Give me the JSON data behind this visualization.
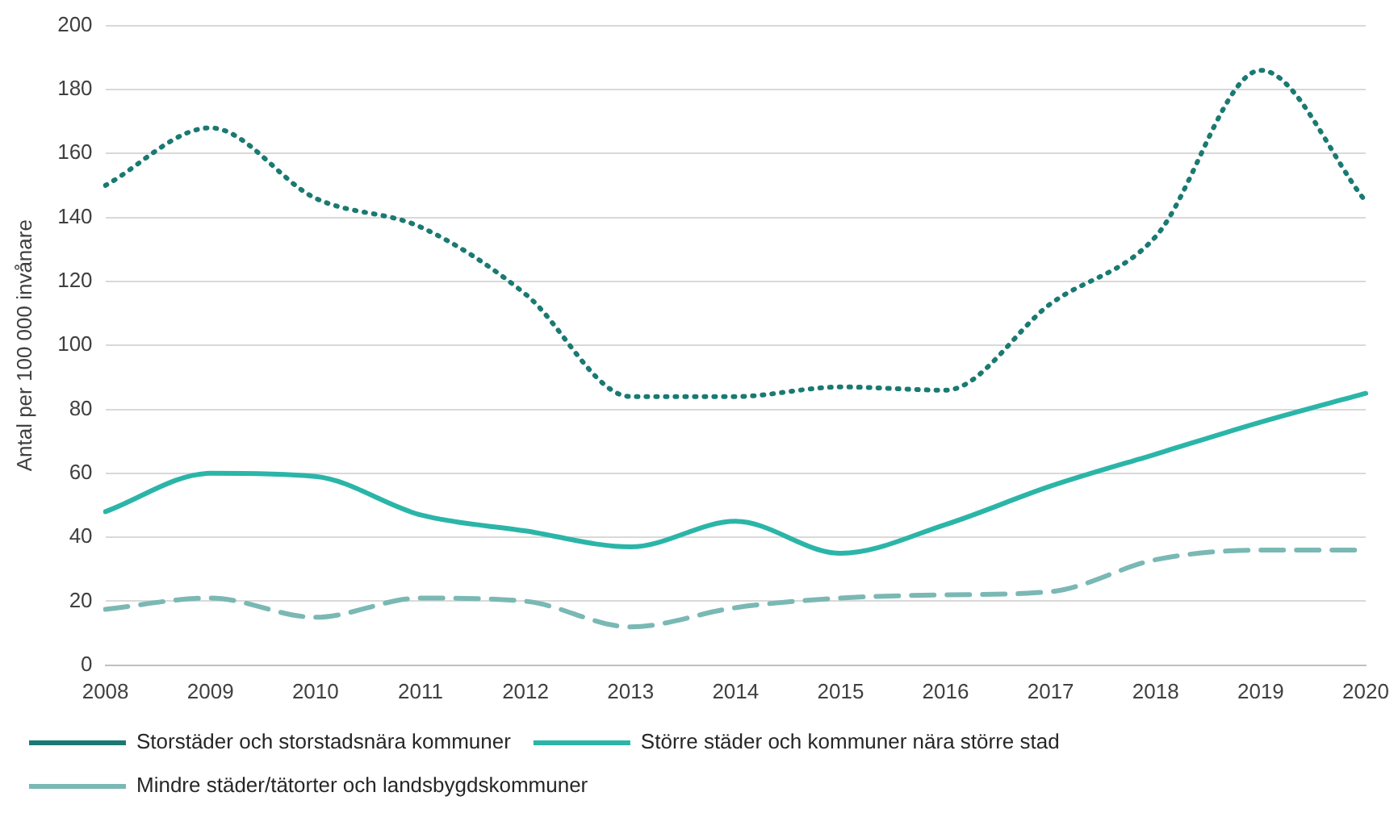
{
  "chart_data": {
    "type": "line",
    "ylabel": "Antal per 100 000 invånare",
    "categories": [
      "2008",
      "2009",
      "2010",
      "2011",
      "2012",
      "2013",
      "2014",
      "2015",
      "2016",
      "2017",
      "2018",
      "2019",
      "2020"
    ],
    "ylim": [
      0,
      200
    ],
    "yticks": [
      0,
      20,
      40,
      60,
      80,
      100,
      120,
      140,
      160,
      180,
      200
    ],
    "grid": "y",
    "legend": "bottom",
    "marker": "none",
    "series": [
      {
        "name": "Storstäder och storstadsnära kommuner",
        "color": "#1a7a72",
        "line_style": "dotted",
        "values": [
          150,
          168,
          146,
          137,
          116,
          84,
          84,
          87,
          86,
          113,
          134,
          186,
          145
        ]
      },
      {
        "name": "Större städer och kommuner nära större stad",
        "color": "#2bb5a8",
        "line_style": "solid",
        "values": [
          48,
          60,
          59,
          47,
          42,
          37,
          45,
          35,
          44,
          56,
          66,
          76,
          85
        ]
      },
      {
        "name": "Mindre städer/tätorter och landsbygdskommuner",
        "color": "#7ab8b4",
        "line_style": "dashed",
        "values": [
          17.5,
          21,
          15,
          21,
          20,
          12,
          18,
          21,
          22,
          23,
          33,
          36,
          36
        ]
      }
    ]
  }
}
